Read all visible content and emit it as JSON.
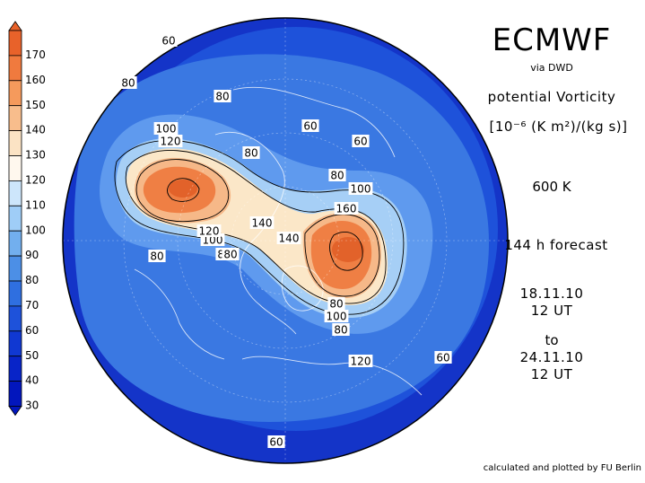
{
  "header": {
    "model": "ECMWF",
    "source": "via DWD",
    "variable": "potential Vorticity",
    "unit": "[10⁻⁶ (K m²)/(kg s)]",
    "level": "600 K",
    "forecast": "144 h forecast",
    "valid_from_date": "18.11.10",
    "valid_from_time": "12 UT",
    "to_word": "to",
    "valid_to_date": "24.11.10",
    "valid_to_time": "12 UT",
    "credit": "calculated and plotted by FU Berlin"
  },
  "colorbar": {
    "ticks": [
      "170",
      "160",
      "150",
      "140",
      "130",
      "120",
      "110",
      "100",
      "90",
      "80",
      "70",
      "60",
      "50",
      "40",
      "30"
    ],
    "colors": [
      "#e8622a",
      "#f07a3e",
      "#f59a5c",
      "#f8bd8c",
      "#fbe3c4",
      "#fff8ee",
      "#cde6fb",
      "#9fcdf7",
      "#72afee",
      "#4c8fe6",
      "#2f6fe0",
      "#1e52da",
      "#1038d2",
      "#0824c8",
      "#0216bd"
    ]
  },
  "map": {
    "contour_labels": [
      "60",
      "80",
      "80",
      "80",
      "60",
      "60",
      "80",
      "80",
      "100",
      "120",
      "80",
      "100",
      "160",
      "140",
      "140",
      "120",
      "100",
      "80",
      "80",
      "120",
      "100",
      "80",
      "80",
      "60",
      "60"
    ],
    "fill_colors": {
      "deep": "#1434c8",
      "dark": "#1e52da",
      "mid": "#3a78e2",
      "light": "#5f9aee",
      "pale": "#a6cff6",
      "cream": "#fbe7c8",
      "peach": "#f6b888",
      "orange": "#ef7f44",
      "core": "#e2622a"
    }
  }
}
